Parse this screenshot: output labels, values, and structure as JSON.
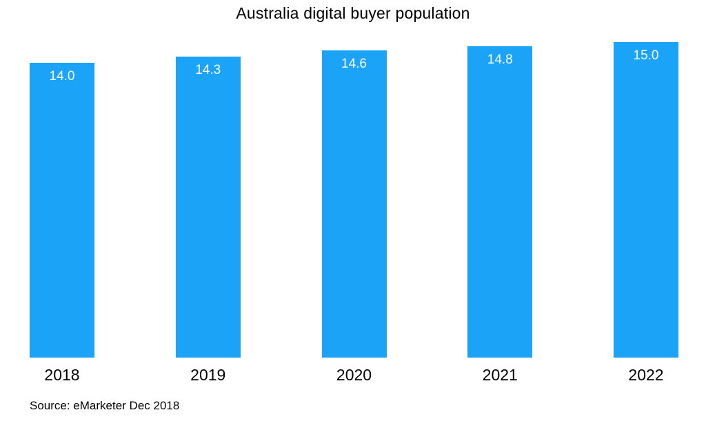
{
  "chart_data": {
    "type": "bar",
    "title": "Australia digital buyer population",
    "categories": [
      "2018",
      "2019",
      "2020",
      "2021",
      "2022"
    ],
    "values": [
      14.0,
      14.3,
      14.6,
      14.8,
      15.0
    ],
    "value_label_format": "one_decimal",
    "ylim": [
      0,
      15.0
    ],
    "grid": false,
    "legend": false,
    "bar_color": "#1AA3F7",
    "value_label_color": "#FFFFFF",
    "text_color": "#000000"
  },
  "source": "Source: eMarketer Dec 2018"
}
